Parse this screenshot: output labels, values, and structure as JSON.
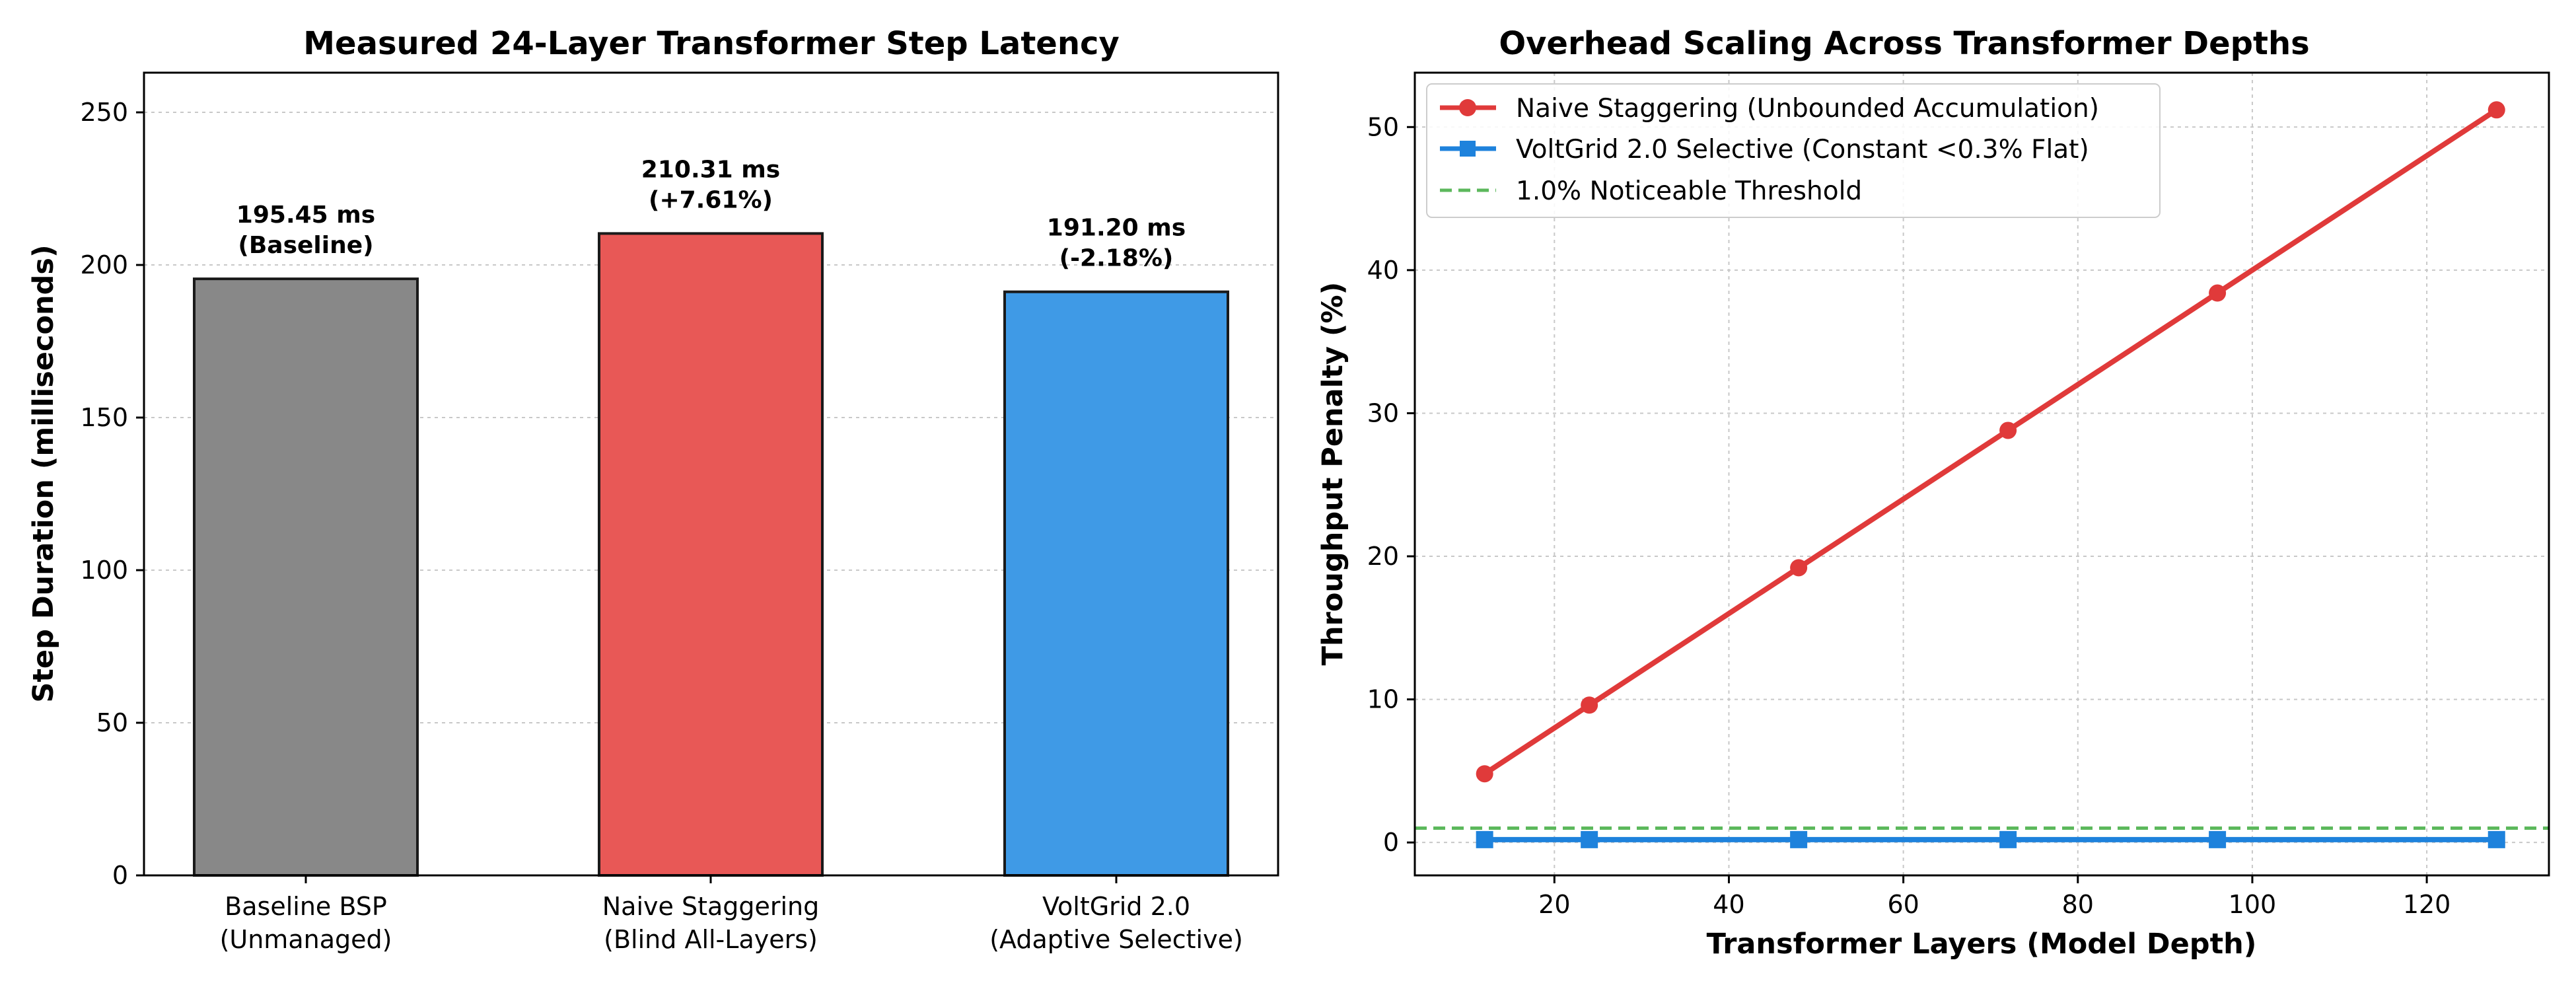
{
  "chart_data": [
    {
      "type": "bar",
      "title": "Measured 24-Layer Transformer Step Latency",
      "xlabel": "",
      "ylabel": "Step Duration (milliseconds)",
      "ylim": [
        0,
        263
      ],
      "yticks": [
        0,
        50,
        100,
        150,
        200,
        250
      ],
      "grid": true,
      "categories": [
        [
          "Baseline BSP",
          "(Unmanaged)"
        ],
        [
          "Naive Staggering",
          "(Blind All-Layers)"
        ],
        [
          "VoltGrid 2.0",
          "(Adaptive Selective)"
        ]
      ],
      "values": [
        195.45,
        210.31,
        191.2
      ],
      "data_labels": [
        [
          "195.45 ms",
          "(Baseline)"
        ],
        [
          "210.31 ms",
          "(+7.61%)"
        ],
        [
          "191.20 ms",
          "(-2.18%)"
        ]
      ],
      "colors": [
        "#888888",
        "#e85856",
        "#3f9ae6"
      ]
    },
    {
      "type": "line",
      "title": "Overhead Scaling Across Transformer Depths",
      "xlabel": "Transformer Layers (Model Depth)",
      "ylabel": "Throughput Penalty (%)",
      "xlim": [
        4,
        134
      ],
      "ylim": [
        -2.3,
        53.8
      ],
      "xticks": [
        20,
        40,
        60,
        80,
        100,
        120
      ],
      "yticks": [
        0,
        10,
        20,
        30,
        40,
        50
      ],
      "grid": true,
      "legend_position": "top-left",
      "x": [
        12,
        24,
        48,
        72,
        96,
        128
      ],
      "series": [
        {
          "name": "Naive Staggering (Unbounded Accumulation)",
          "values": [
            4.8,
            9.6,
            19.2,
            28.8,
            38.4,
            51.2
          ],
          "color": "#e03a3a",
          "marker": "circle"
        },
        {
          "name": "VoltGrid 2.0 Selective (Constant <0.3% Flat)",
          "values": [
            0.2,
            0.2,
            0.2,
            0.2,
            0.2,
            0.2
          ],
          "color": "#1e82dc",
          "marker": "square"
        }
      ],
      "reference_line": {
        "name": "1.0% Noticeable Threshold",
        "y": 1.0,
        "color": "#5cb85c",
        "style": "dashed"
      }
    }
  ]
}
